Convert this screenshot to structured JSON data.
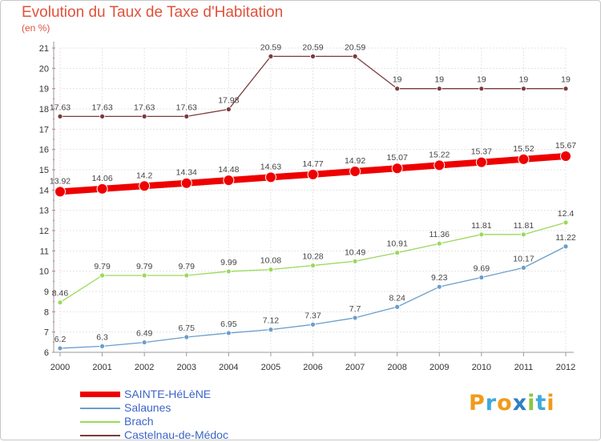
{
  "header": {
    "title": "Evolution du Taux de Taxe d'Habitation",
    "subtitle": "(en %)"
  },
  "brand": {
    "letters": [
      "P",
      "r",
      "o",
      "x",
      "i",
      "t",
      "i"
    ],
    "colors": [
      "#f29a1b",
      "#3fa9dd",
      "#f29a1b",
      "#2e7fc3",
      "#8cc63e",
      "#3fa9dd",
      "#f29a1b"
    ]
  },
  "chart_data": {
    "type": "line",
    "title": "Evolution du Taux de Taxe d'Habitation",
    "subtitle": "(en %)",
    "xlabel": "",
    "ylabel": "",
    "x": [
      "2000",
      "2001",
      "2002",
      "2003",
      "2004",
      "2005",
      "2006",
      "2007",
      "2008",
      "2009",
      "2010",
      "2011",
      "2012"
    ],
    "ylim": [
      6,
      21
    ],
    "yticks": [
      6,
      7,
      8,
      9,
      10,
      11,
      12,
      13,
      14,
      15,
      16,
      17,
      18,
      19,
      20,
      21
    ],
    "grid": true,
    "legend_position": "bottom-left",
    "series": [
      {
        "name": "SAINTE-HéLèNE",
        "color": "#ee0000",
        "values": [
          13.92,
          14.06,
          14.2,
          14.34,
          14.48,
          14.63,
          14.77,
          14.92,
          15.07,
          15.22,
          15.37,
          15.52,
          15.67
        ],
        "labels": [
          "13.92",
          "14.06",
          "14.2",
          "14.34",
          "14.48",
          "14.63",
          "14.77",
          "14.92",
          "15.07",
          "15.22",
          "15.37",
          "15.52",
          "15.67"
        ]
      },
      {
        "name": "Salaunes",
        "color": "#6b9dcb",
        "values": [
          6.2,
          6.3,
          6.49,
          6.75,
          6.95,
          7.12,
          7.37,
          7.7,
          8.24,
          9.23,
          9.69,
          10.17,
          11.22
        ],
        "labels": [
          "6.2",
          "6.3",
          "6.49",
          "6.75",
          "6.95",
          "7.12",
          "7.37",
          "7.7",
          "8.24",
          "9.23",
          "9.69",
          "10.17",
          "11.22"
        ]
      },
      {
        "name": "Brach",
        "color": "#9ad95a",
        "values": [
          8.46,
          9.79,
          9.79,
          9.79,
          9.99,
          10.08,
          10.28,
          10.49,
          10.91,
          11.36,
          11.81,
          11.81,
          12.4
        ],
        "labels": [
          "8.46",
          "9.79",
          "9.79",
          "9.79",
          "9.99",
          "10.08",
          "10.28",
          "10.49",
          "10.91",
          "11.36",
          "11.81",
          "11.81",
          "12.4"
        ]
      },
      {
        "name": "Castelnau-de-Médoc",
        "color": "#7a3b3b",
        "values": [
          17.63,
          17.63,
          17.63,
          17.63,
          17.98,
          20.59,
          20.59,
          20.59,
          19,
          19,
          19,
          19,
          19
        ],
        "labels": [
          "17.63",
          "17.63",
          "17.63",
          "17.63",
          "17.98",
          "20.59",
          "20.59",
          "20.59",
          "19",
          "19",
          "19",
          "19",
          "19"
        ]
      }
    ]
  }
}
